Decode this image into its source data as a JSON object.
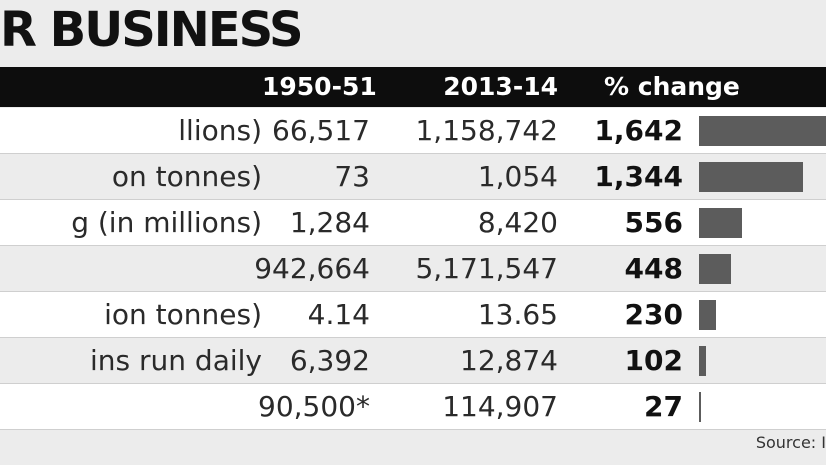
{
  "title": "R BUSINESS",
  "source_text": "Source: I",
  "chart_data": {
    "type": "table",
    "columns": [
      "",
      "1950-51",
      "2013-14",
      "% change"
    ],
    "rows": [
      {
        "label": "llions)",
        "v1950": "66,517",
        "v2013": "1,158,742",
        "change": 1642,
        "change_label": "1,642"
      },
      {
        "label": "on tonnes)",
        "v1950": "73",
        "v2013": "1,054",
        "change": 1344,
        "change_label": "1,344"
      },
      {
        "label": "g (in millions)",
        "v1950": "1,284",
        "v2013": "8,420",
        "change": 556,
        "change_label": "556"
      },
      {
        "label": "",
        "v1950": "942,664",
        "v2013": "5,171,547",
        "change": 448,
        "change_label": "448"
      },
      {
        "label": "ion tonnes)",
        "v1950": "4.14",
        "v2013": "13.65",
        "change": 230,
        "change_label": "230"
      },
      {
        "label": "ins run daily",
        "v1950": "6,392",
        "v2013": "12,874",
        "change": 102,
        "change_label": "102"
      },
      {
        "label": "",
        "v1950": "90,500*",
        "v2013": "114,907",
        "change": 27,
        "change_label": "27"
      }
    ],
    "bar_color": "#5c5c5c",
    "header_color": "#0d0d0d"
  }
}
